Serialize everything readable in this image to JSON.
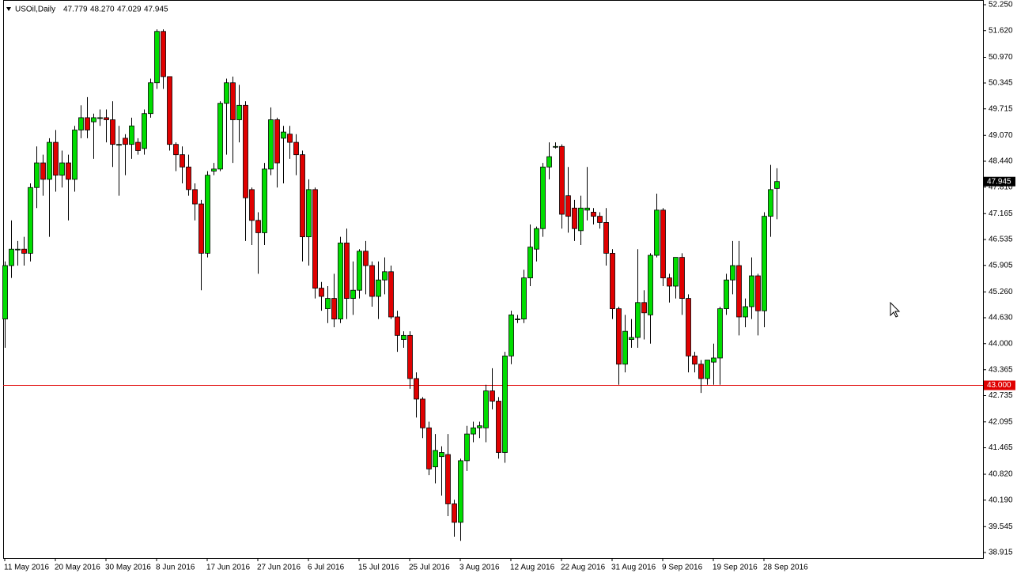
{
  "chart_data": {
    "type": "candlestick",
    "title": "USOil,Daily",
    "header_values": [
      "47.779",
      "48.270",
      "47.029",
      "47.945"
    ],
    "categories": [
      "11 May 2016",
      null,
      null,
      null,
      null,
      null,
      null,
      null,
      "20 May 2016",
      null,
      null,
      null,
      null,
      null,
      null,
      null,
      "30 May 2016",
      null,
      null,
      null,
      null,
      null,
      null,
      null,
      "8 Jun 2016",
      null,
      null,
      null,
      null,
      null,
      null,
      null,
      "17 Jun 2016",
      null,
      null,
      null,
      null,
      null,
      null,
      null,
      "27 Jun 2016",
      null,
      null,
      null,
      null,
      null,
      null,
      null,
      "6 Jul 2016",
      null,
      null,
      null,
      null,
      null,
      null,
      null,
      "15 Jul 2016",
      null,
      null,
      null,
      null,
      null,
      null,
      null,
      "25 Jul 2016",
      null,
      null,
      null,
      null,
      null,
      null,
      null,
      "3 Aug 2016",
      null,
      null,
      null,
      null,
      null,
      null,
      null,
      "12 Aug 2016",
      null,
      null,
      null,
      null,
      null,
      null,
      null,
      "22 Aug 2016",
      null,
      null,
      null,
      null,
      null,
      null,
      null,
      "31 Aug 2016",
      null,
      null,
      null,
      null,
      null,
      null,
      null,
      "9 Sep 2016",
      null,
      null,
      null,
      null,
      null,
      null,
      null,
      "19 Sep 2016",
      null,
      null,
      null,
      null,
      null,
      null,
      null,
      "28 Sep 2016",
      null,
      null
    ],
    "open": [
      44.6,
      45.9,
      46.3,
      46.3,
      46.2,
      47.8,
      48.4,
      48.0,
      48.9,
      48.1,
      48.4,
      48.0,
      49.2,
      49.5,
      49.4,
      49.5,
      49.5,
      49.45,
      48.85,
      49.0,
      48.85,
      48.9,
      48.75,
      49.6,
      50.35,
      51.6,
      50.5,
      48.85,
      48.6,
      48.3,
      47.75,
      47.4,
      46.2,
      48.2,
      48.25,
      49.85,
      50.35,
      49.45,
      49.8,
      47.75,
      47.0,
      46.7,
      48.25,
      49.45,
      49.0,
      49.1,
      48.9,
      48.6,
      46.6,
      47.75,
      45.35,
      44.85,
      45.1,
      44.6,
      46.45,
      45.1,
      45.3,
      46.25,
      45.9,
      45.15,
      45.55,
      45.75,
      44.65,
      44.1,
      44.2,
      43.15,
      42.65,
      41.95,
      41.0,
      41.25,
      41.3,
      40.1,
      39.65,
      41.15,
      41.8,
      41.95,
      41.95,
      42.85,
      42.6,
      41.35,
      43.7,
      44.6,
      44.6,
      45.6,
      46.3,
      46.8,
      48.3,
      48.8,
      48.8,
      47.6,
      47.3,
      46.75,
      47.25,
      47.2,
      47.1,
      46.95,
      46.2,
      44.85,
      43.5,
      44.1,
      44.15,
      45.0,
      44.7,
      46.15,
      47.25,
      45.6,
      45.4,
      46.1,
      45.1,
      43.7,
      43.5,
      43.15,
      43.55,
      43.65,
      44.85,
      45.55,
      45.9,
      44.65,
      44.9,
      45.65,
      44.8,
      47.1,
      47.779
    ],
    "high": [
      46.0,
      47.0,
      46.5,
      46.6,
      47.9,
      48.8,
      48.6,
      49.0,
      49.2,
      48.7,
      48.6,
      49.3,
      49.8,
      50.0,
      49.6,
      49.7,
      49.7,
      49.9,
      49.3,
      49.1,
      49.5,
      49.0,
      49.7,
      50.45,
      51.65,
      51.65,
      50.5,
      48.9,
      48.8,
      48.6,
      47.9,
      47.5,
      48.2,
      48.4,
      49.9,
      50.45,
      50.5,
      50.3,
      49.9,
      47.8,
      47.2,
      48.4,
      49.75,
      49.5,
      49.3,
      49.3,
      49.1,
      48.7,
      48.0,
      47.8,
      45.5,
      45.4,
      45.7,
      46.6,
      46.8,
      46.0,
      46.3,
      46.5,
      46.0,
      46.0,
      46.1,
      45.9,
      44.8,
      44.3,
      44.3,
      43.3,
      42.7,
      42.1,
      41.8,
      41.5,
      41.8,
      40.2,
      41.2,
      42.0,
      42.1,
      42.1,
      43.0,
      43.4,
      42.7,
      43.8,
      44.8,
      44.7,
      45.8,
      46.9,
      46.85,
      48.4,
      48.9,
      48.9,
      48.85,
      48.3,
      47.5,
      47.6,
      48.3,
      47.3,
      47.2,
      47.3,
      46.3,
      44.9,
      44.7,
      44.6,
      46.3,
      45.3,
      46.2,
      47.65,
      47.3,
      45.7,
      46.1,
      46.2,
      45.2,
      43.8,
      43.6,
      43.6,
      44.0,
      44.9,
      45.7,
      46.5,
      46.5,
      45.1,
      46.1,
      45.7,
      47.2,
      48.35,
      48.27
    ],
    "low": [
      43.9,
      45.6,
      45.9,
      45.9,
      46.0,
      47.3,
      47.6,
      46.6,
      47.7,
      47.8,
      47.0,
      47.7,
      49.0,
      49.0,
      48.5,
      49.3,
      48.9,
      48.3,
      47.6,
      48.1,
      48.5,
      48.6,
      48.6,
      49.5,
      50.2,
      50.2,
      48.7,
      48.2,
      47.9,
      47.6,
      47.0,
      45.3,
      46.1,
      48.1,
      48.2,
      48.6,
      48.4,
      48.9,
      46.5,
      46.4,
      45.7,
      46.4,
      48.1,
      47.8,
      47.9,
      48.5,
      48.1,
      46.0,
      45.9,
      45.1,
      44.8,
      44.5,
      44.4,
      44.5,
      44.6,
      44.7,
      45.1,
      45.2,
      44.9,
      44.6,
      45.2,
      44.6,
      43.8,
      43.9,
      42.9,
      42.2,
      41.7,
      40.8,
      40.6,
      40.3,
      39.8,
      39.3,
      39.2,
      40.9,
      41.6,
      41.7,
      41.6,
      42.4,
      41.2,
      41.1,
      43.5,
      44.5,
      44.5,
      45.4,
      46.0,
      46.6,
      48.0,
      48.75,
      46.8,
      46.7,
      46.5,
      46.4,
      47.0,
      46.9,
      46.8,
      45.9,
      44.6,
      43.0,
      43.3,
      43.9,
      43.9,
      44.1,
      44.0,
      46.1,
      45.4,
      45.0,
      45.1,
      44.7,
      43.3,
      43.3,
      42.8,
      43.0,
      43.0,
      43.0,
      44.7,
      45.2,
      44.2,
      44.4,
      44.6,
      44.2,
      44.4,
      46.6,
      47.029
    ],
    "close": [
      45.9,
      46.3,
      46.3,
      46.2,
      47.8,
      48.4,
      48.0,
      48.9,
      48.1,
      48.4,
      48.0,
      49.2,
      49.5,
      49.2,
      49.5,
      49.5,
      49.45,
      48.85,
      48.85,
      48.85,
      49.3,
      48.7,
      49.6,
      50.35,
      51.6,
      50.5,
      48.85,
      48.6,
      48.3,
      47.75,
      47.4,
      46.2,
      48.1,
      48.25,
      49.85,
      50.35,
      49.45,
      49.8,
      47.55,
      47.0,
      46.7,
      48.25,
      49.45,
      48.4,
      49.15,
      48.9,
      48.6,
      46.6,
      47.75,
      45.35,
      45.15,
      45.1,
      44.6,
      46.45,
      45.1,
      45.3,
      46.25,
      45.9,
      45.15,
      45.55,
      45.75,
      44.65,
      44.2,
      44.2,
      43.15,
      42.65,
      41.95,
      40.95,
      41.4,
      41.35,
      40.1,
      39.65,
      41.15,
      41.8,
      41.95,
      42.0,
      42.85,
      42.6,
      41.35,
      43.7,
      44.7,
      44.6,
      45.6,
      46.35,
      46.8,
      48.3,
      48.55,
      48.8,
      47.15,
      47.1,
      46.8,
      47.3,
      47.3,
      47.1,
      46.95,
      46.2,
      44.85,
      43.5,
      44.3,
      44.15,
      45.0,
      44.75,
      46.15,
      47.25,
      45.6,
      45.4,
      46.1,
      45.1,
      43.7,
      43.5,
      43.15,
      43.6,
      43.65,
      44.85,
      45.55,
      45.9,
      44.65,
      44.9,
      45.65,
      44.8,
      47.1,
      47.75,
      47.945
    ],
    "up_color": "#00dd00",
    "down_color": "#e00000",
    "ylim": [
      38.781,
      52.365
    ],
    "yticks": [
      {
        "value": 52.25,
        "label": "52.250"
      },
      {
        "value": 51.62,
        "label": "51.620"
      },
      {
        "value": 50.97,
        "label": "50.970"
      },
      50.345,
      49.715,
      {
        "value": 49.07,
        "label": "49.070"
      },
      {
        "value": 48.44,
        "label": "48.440"
      },
      {
        "value": 47.81,
        "label": "47.810"
      },
      47.165,
      46.535,
      45.905,
      {
        "value": 45.26,
        "label": "45.260"
      },
      {
        "value": 44.63,
        "label": "44.630"
      },
      {
        "value": 44,
        "label": "44.000"
      },
      43.365,
      42.735,
      42.095,
      41.465,
      {
        "value": 40.82,
        "label": "40.820"
      },
      {
        "value": 40.19,
        "label": "40.190"
      },
      39.545,
      38.915
    ],
    "h_line": {
      "value": 43,
      "label": "43.000",
      "color": "#e00000"
    }
  }
}
